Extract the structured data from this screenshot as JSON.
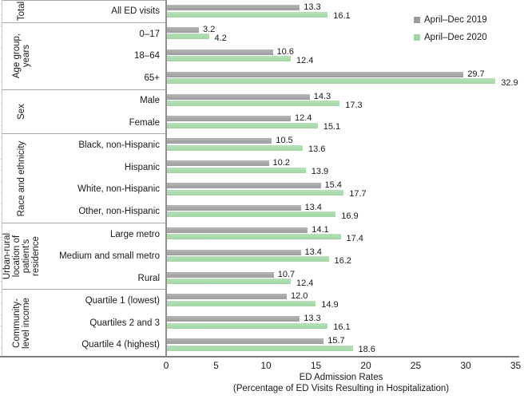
{
  "colors": {
    "bar_2019": "#9d9d9d",
    "bar_2020": "#a3d6a6",
    "axis_line": "#8f8f8f",
    "group_separator": "#a9a9a9",
    "left_edge_line": "#c9c9c9",
    "faint_tick": "#e4e4e4"
  },
  "legend": {
    "items": [
      {
        "label": "April–Dec 2019",
        "color": "#9d9d9d",
        "swatch_name": "legend-swatch-2019"
      },
      {
        "label": "April–Dec 2020",
        "color": "#a3d6a6",
        "swatch_name": "legend-swatch-2020"
      }
    ]
  },
  "x_axis": {
    "label_line1": "ED Admission Rates",
    "label_line2": "(Percentage of ED Visits Resulting in Hospitalization)"
  },
  "chart_data": {
    "type": "bar",
    "orientation": "horizontal",
    "title": "",
    "xlabel": "ED Admission Rates (Percentage of ED Visits Resulting in Hospitalization)",
    "ylabel": "",
    "xlim": [
      0,
      35
    ],
    "xticks": [
      0,
      5,
      10,
      15,
      20,
      25,
      30,
      35
    ],
    "grid": false,
    "legend_position": "top-right",
    "series_names": [
      "April–Dec 2019",
      "April–Dec 2020"
    ],
    "groups": [
      {
        "label": "Total",
        "label_lines": [
          "Total"
        ],
        "rows": [
          {
            "category": "All ED visits",
            "values": [
              13.3,
              16.1
            ]
          }
        ]
      },
      {
        "label": "Age group, years",
        "label_lines": [
          "Age group,",
          "years"
        ],
        "rows": [
          {
            "category": "0–17",
            "values": [
              3.2,
              4.2
            ]
          },
          {
            "category": "18–64",
            "values": [
              10.6,
              12.4
            ]
          },
          {
            "category": "65+",
            "values": [
              29.7,
              32.9
            ]
          }
        ]
      },
      {
        "label": "Sex",
        "label_lines": [
          "Sex"
        ],
        "rows": [
          {
            "category": "Male",
            "values": [
              14.3,
              17.3
            ]
          },
          {
            "category": "Female",
            "values": [
              12.4,
              15.1
            ]
          }
        ]
      },
      {
        "label": "Race and ethnicity",
        "label_lines": [
          "Race and ethnicity"
        ],
        "rows": [
          {
            "category": "Black, non-Hispanic",
            "values": [
              10.5,
              13.6
            ]
          },
          {
            "category": "Hispanic",
            "values": [
              10.2,
              13.9
            ]
          },
          {
            "category": "White, non-Hispanic",
            "values": [
              15.4,
              17.7
            ]
          },
          {
            "category": "Other, non-Hispanic",
            "values": [
              13.4,
              16.9
            ]
          }
        ]
      },
      {
        "label": "Urban-rural location of patient's residence",
        "label_lines": [
          "Urban-rural",
          "location of",
          "patient's",
          "residence"
        ],
        "rows": [
          {
            "category": "Large metro",
            "values": [
              14.1,
              17.4
            ]
          },
          {
            "category": "Medium and small metro",
            "values": [
              13.4,
              16.2
            ]
          },
          {
            "category": "Rural",
            "values": [
              10.7,
              12.4
            ]
          }
        ]
      },
      {
        "label": "Community-level income",
        "label_lines": [
          "Community-",
          "level income"
        ],
        "rows": [
          {
            "category": "Quartile 1 (lowest)",
            "values": [
              12.0,
              14.9
            ]
          },
          {
            "category": "Quartiles 2 and 3",
            "values": [
              13.3,
              16.1
            ]
          },
          {
            "category": "Quartile 4 (highest)",
            "values": [
              15.7,
              18.6
            ]
          }
        ]
      }
    ]
  }
}
